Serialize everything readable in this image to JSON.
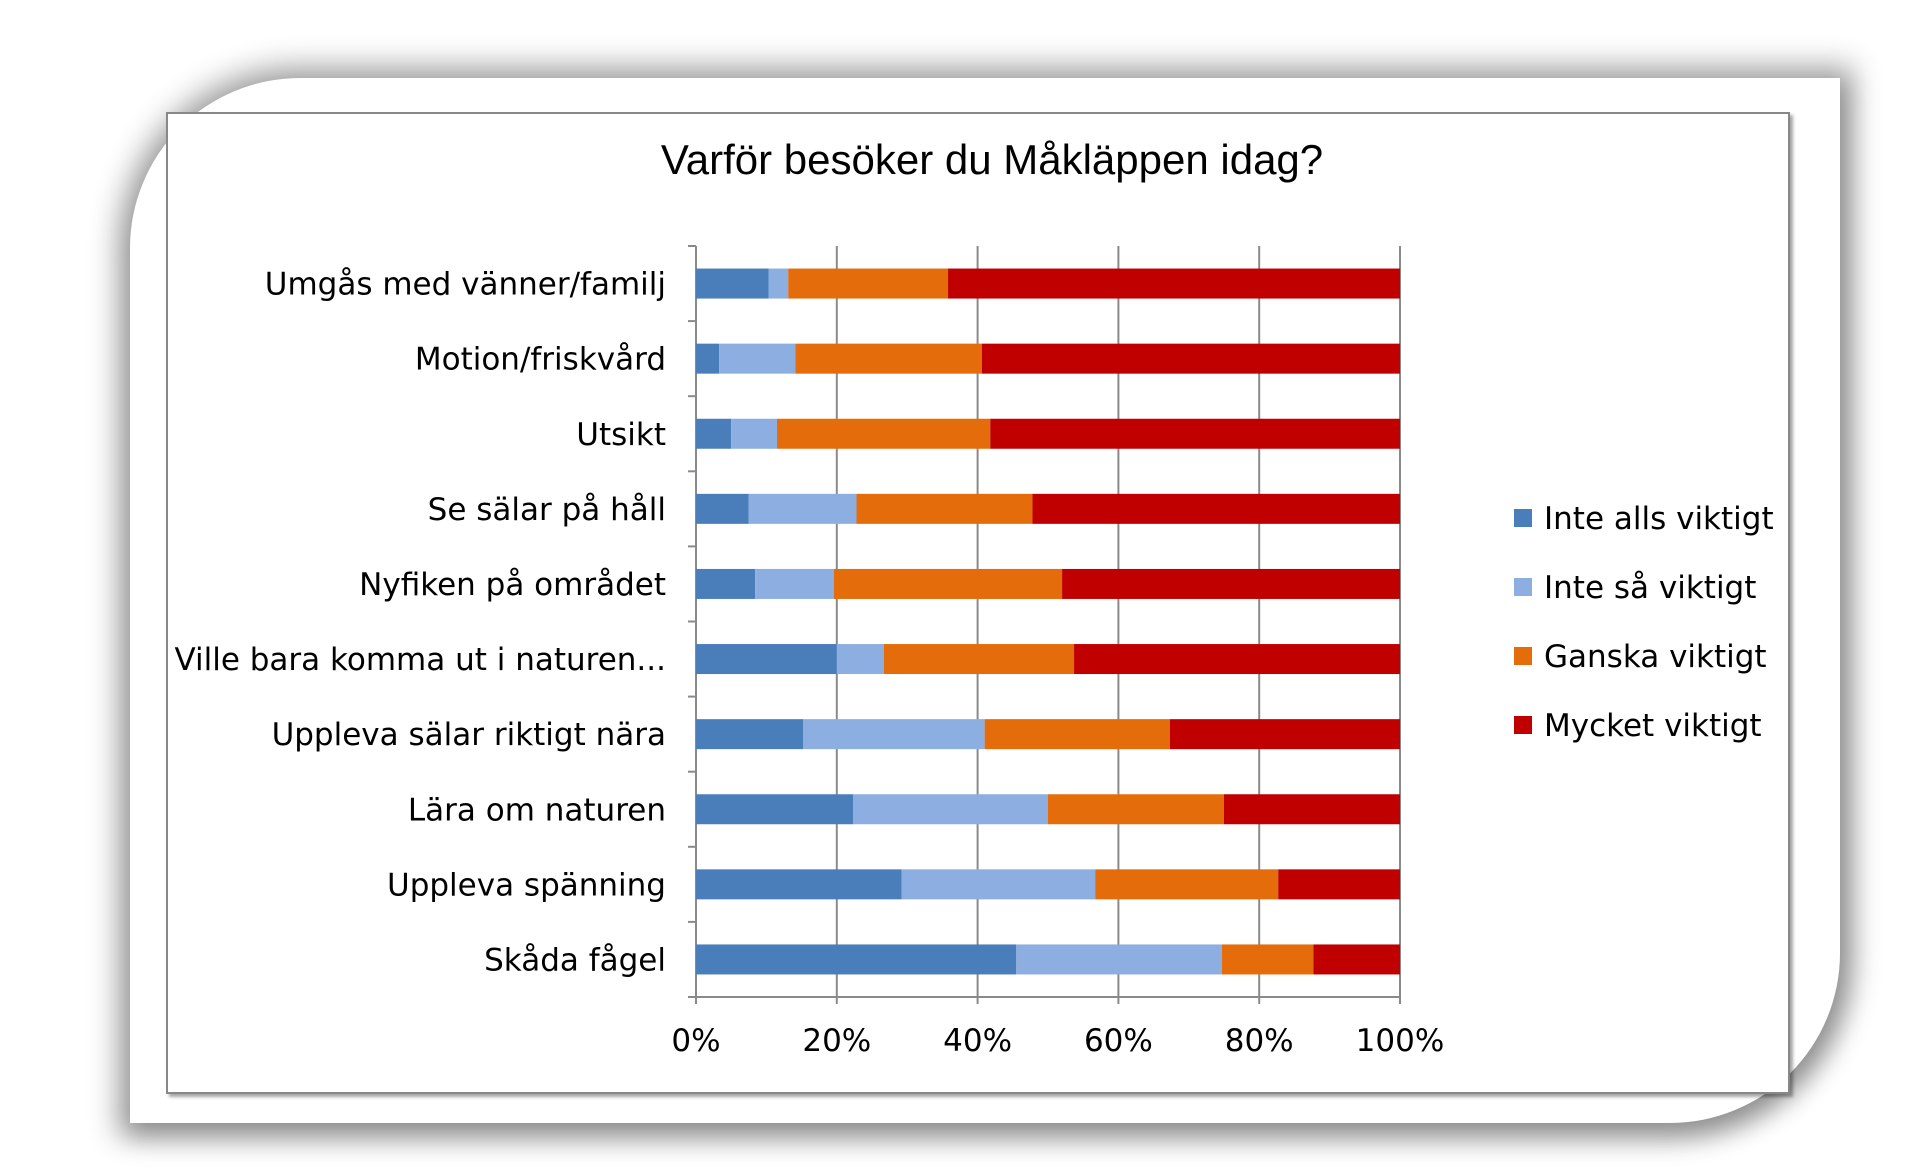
{
  "chart_data": {
    "type": "bar",
    "orientation": "horizontal",
    "stacked": "percent",
    "title": "Varför besöker du Måkläppen idag?",
    "categories": [
      "Umgås med vänner/familj",
      "Motion/friskvård",
      "Utsikt",
      "Se sälar på håll",
      "Nyfiken på området",
      "Ville bara komma ut i naturen...",
      "Uppleva sälar riktigt nära",
      "Lära om naturen",
      "Uppleva spänning",
      "Skåda fågel"
    ],
    "series": [
      {
        "name": "Inte alls viktigt",
        "color": "#4a7ebb",
        "values": [
          10.3,
          3.3,
          5.0,
          7.5,
          8.4,
          20.0,
          15.2,
          22.3,
          29.2,
          45.5
        ]
      },
      {
        "name": "Inte så viktigt",
        "color": "#8caee0",
        "values": [
          2.8,
          10.8,
          6.5,
          15.3,
          11.2,
          6.7,
          25.8,
          27.7,
          27.5,
          29.2
        ]
      },
      {
        "name": "Ganska viktigt",
        "color": "#e46c0a",
        "values": [
          22.7,
          26.5,
          30.3,
          25.0,
          32.4,
          27.0,
          26.3,
          25.0,
          26.0,
          13.0
        ]
      },
      {
        "name": "Mycket viktigt",
        "color": "#c00000",
        "values": [
          64.2,
          59.4,
          58.2,
          52.2,
          48.0,
          46.3,
          32.7,
          25.0,
          17.3,
          12.3
        ]
      }
    ],
    "x_ticks": [
      "0%",
      "20%",
      "40%",
      "60%",
      "80%",
      "100%"
    ],
    "xlim": [
      0,
      100
    ],
    "grid": "vertical",
    "legend": "right"
  }
}
